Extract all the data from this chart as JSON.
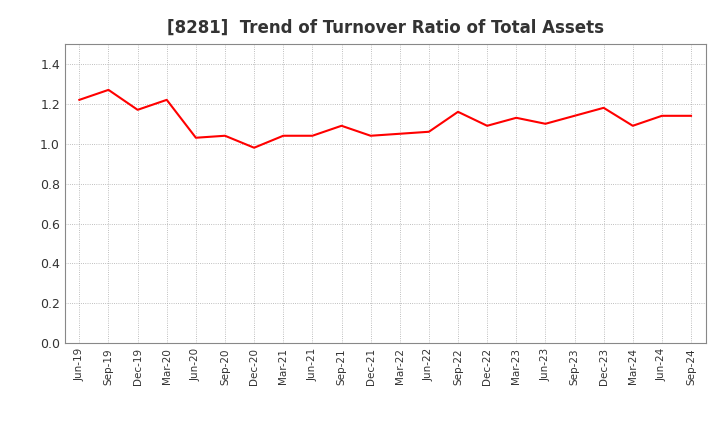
{
  "title": "[8281]  Trend of Turnover Ratio of Total Assets",
  "line_color": "#FF0000",
  "line_width": 1.5,
  "background_color": "#FFFFFF",
  "grid_color": "#AAAAAA",
  "ylim": [
    0.0,
    1.5
  ],
  "yticks": [
    0.0,
    0.2,
    0.4,
    0.6,
    0.8,
    1.0,
    1.2,
    1.4
  ],
  "labels": [
    "Jun-19",
    "Sep-19",
    "Dec-19",
    "Mar-20",
    "Jun-20",
    "Sep-20",
    "Dec-20",
    "Mar-21",
    "Jun-21",
    "Sep-21",
    "Dec-21",
    "Mar-22",
    "Jun-22",
    "Sep-22",
    "Dec-22",
    "Mar-23",
    "Jun-23",
    "Sep-23",
    "Dec-23",
    "Mar-24",
    "Jun-24",
    "Sep-24"
  ],
  "values": [
    1.22,
    1.27,
    1.17,
    1.22,
    1.03,
    1.04,
    0.98,
    1.04,
    1.04,
    1.09,
    1.04,
    1.05,
    1.06,
    1.16,
    1.09,
    1.13,
    1.1,
    1.14,
    1.18,
    1.09,
    1.14,
    1.14
  ],
  "title_fontsize": 12,
  "title_color": "#333333",
  "tick_color": "#333333",
  "spine_color": "#888888"
}
